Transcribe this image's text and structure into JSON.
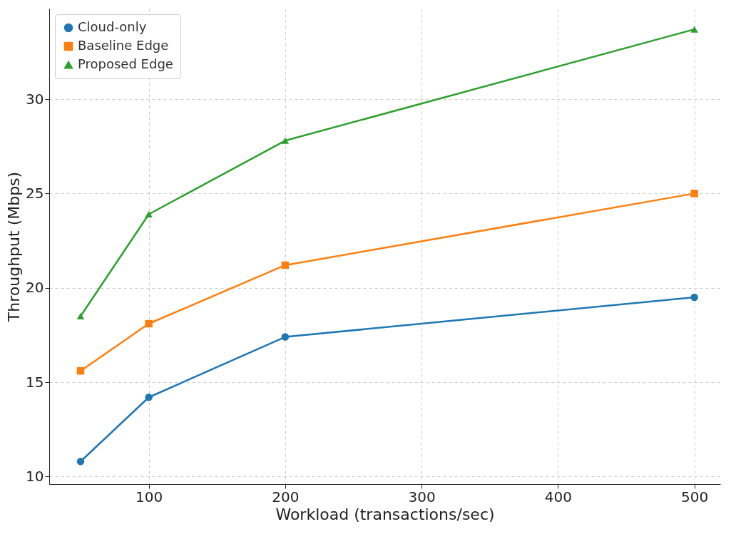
{
  "chart_data": {
    "type": "line",
    "xlabel": "Workload (transactions/sec)",
    "ylabel": "Throughput (Mbps)",
    "x": [
      50,
      100,
      200,
      500
    ],
    "series": [
      {
        "name": "Cloud-only",
        "color": "#1f77b4",
        "marker": "circle",
        "values": [
          10.8,
          14.2,
          17.4,
          19.5
        ]
      },
      {
        "name": "Baseline Edge",
        "color": "#ff7f0e",
        "marker": "square",
        "values": [
          15.6,
          18.1,
          21.2,
          25.0
        ]
      },
      {
        "name": "Proposed Edge",
        "color": "#2ca02c",
        "marker": "triangle",
        "values": [
          18.5,
          23.9,
          27.8,
          33.7
        ]
      }
    ],
    "xlim": [
      27,
      519
    ],
    "xticks": [
      100,
      200,
      300,
      400,
      500
    ],
    "ylim": [
      9.6,
      34.8
    ],
    "yticks": [
      10,
      15,
      20,
      25,
      30
    ],
    "grid": true,
    "legend": "top left",
    "line_style": "solid"
  }
}
